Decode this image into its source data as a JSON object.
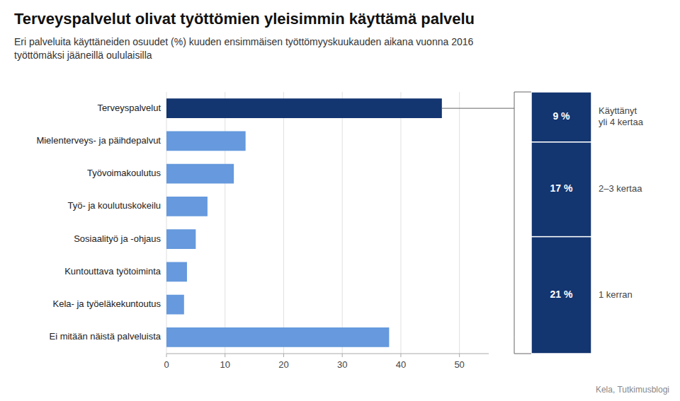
{
  "chart_data": [
    {
      "type": "bar",
      "orientation": "horizontal",
      "title": "Terveyspalvelut olivat työttömien yleisimmin käyttämä palvelu",
      "subtitle": [
        "Eri palveluita käyttäneiden osuudet (%) kuuden ensimmäisen työttömyyskuukauden aikana vuonna 2016",
        "työttömäksi jääneillä oululaisilla"
      ],
      "source": "Kela, Tutkimusblogi",
      "categories": [
        "Terveyspalvelut",
        "Mielenterveys- ja päihdepalvut",
        "Työvoimakoulutus",
        "Työ- ja koulutuskokeilu",
        "Sosiaalityö ja -ohjaus",
        "Kuntouttava työtoiminta",
        "Kela- ja työeläkekuntoutus",
        "Ei mitään näistä palveluista"
      ],
      "values": [
        47,
        13.5,
        11.5,
        7,
        5,
        3.5,
        3,
        38
      ],
      "colors": [
        "#133570",
        "#6699dd",
        "#6699dd",
        "#6699dd",
        "#6699dd",
        "#6699dd",
        "#6699dd",
        "#6699dd"
      ],
      "xlim": [
        0,
        55
      ],
      "xticks": [
        0,
        10,
        20,
        30,
        40,
        50
      ],
      "grid": true
    },
    {
      "type": "bar",
      "stacked": true,
      "data_labels": true,
      "tick_labels": false,
      "series": [
        {
          "name": "Käyttänyt\nyli 4 kertaa",
          "color": "#133570",
          "values": [
            9
          ],
          "value_labels": [
            "9 %"
          ]
        },
        {
          "name": "2–3 kertaa",
          "color": "#133570",
          "values": [
            17
          ],
          "value_labels": [
            "17 %"
          ]
        },
        {
          "name": "1 kerran",
          "color": "#133570",
          "values": [
            21
          ],
          "value_labels": [
            "21 %"
          ]
        }
      ]
    }
  ]
}
